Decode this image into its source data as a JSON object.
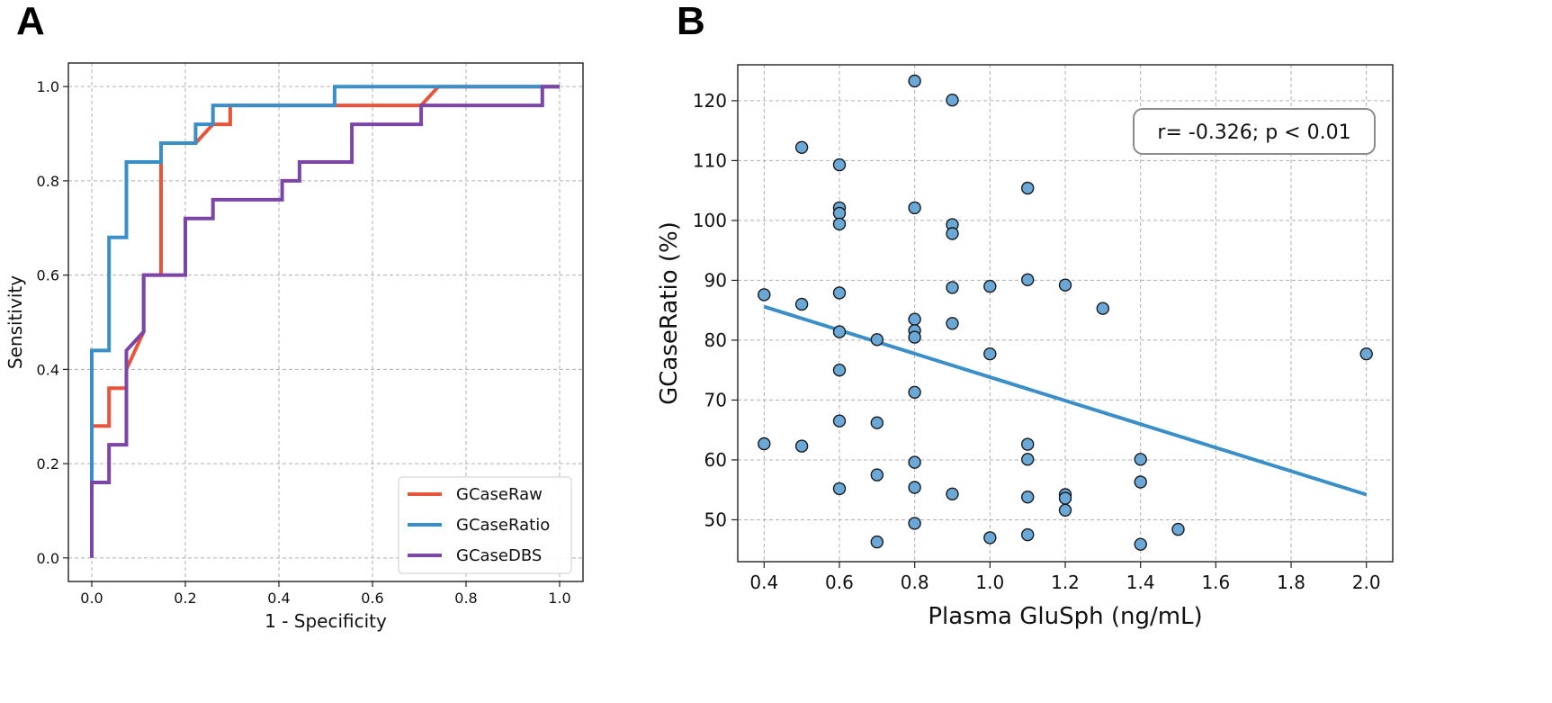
{
  "chart_data": [
    {
      "panel": "A",
      "type": "line",
      "title": "",
      "xlabel": "1 - Specificity",
      "ylabel": "Sensitivity",
      "xlim": [
        -0.05,
        1.05
      ],
      "ylim": [
        -0.05,
        1.05
      ],
      "xticks": [
        0.0,
        0.2,
        0.4,
        0.6,
        0.8,
        1.0
      ],
      "yticks": [
        0.0,
        0.2,
        0.4,
        0.6,
        0.8,
        1.0
      ],
      "xtick_labels": [
        "0.0",
        "0.2",
        "0.4",
        "0.6",
        "0.8",
        "1.0"
      ],
      "ytick_labels": [
        "0.0",
        "0.2",
        "0.4",
        "0.6",
        "0.8",
        "1.0"
      ],
      "grid": true,
      "legend_position": "bottom-right",
      "series": [
        {
          "name": "GCaseRaw",
          "color": "#e8553a",
          "x": [
            0.0,
            0.0,
            0.037,
            0.037,
            0.074,
            0.074,
            0.111,
            0.111,
            0.148,
            0.148,
            0.222,
            0.259,
            0.296,
            0.296,
            0.704,
            0.741,
            1.0
          ],
          "y": [
            0.0,
            0.28,
            0.28,
            0.36,
            0.36,
            0.4,
            0.48,
            0.6,
            0.6,
            0.88,
            0.88,
            0.92,
            0.92,
            0.96,
            0.96,
            1.0,
            1.0
          ]
        },
        {
          "name": "GCaseRatio",
          "color": "#3a8fc8",
          "x": [
            0.0,
            0.0,
            0.037,
            0.037,
            0.074,
            0.074,
            0.148,
            0.148,
            0.222,
            0.222,
            0.259,
            0.259,
            0.519,
            0.519,
            1.0
          ],
          "y": [
            0.0,
            0.44,
            0.44,
            0.68,
            0.68,
            0.84,
            0.84,
            0.88,
            0.88,
            0.92,
            0.92,
            0.96,
            0.96,
            1.0,
            1.0
          ]
        },
        {
          "name": "GCaseDBS",
          "color": "#7b46a8",
          "x": [
            0.0,
            0.0,
            0.037,
            0.037,
            0.074,
            0.074,
            0.111,
            0.111,
            0.2,
            0.2,
            0.259,
            0.259,
            0.407,
            0.407,
            0.444,
            0.444,
            0.556,
            0.556,
            0.704,
            0.704,
            0.963,
            0.963,
            1.0
          ],
          "y": [
            0.0,
            0.16,
            0.16,
            0.24,
            0.24,
            0.44,
            0.48,
            0.6,
            0.6,
            0.72,
            0.72,
            0.76,
            0.76,
            0.8,
            0.8,
            0.84,
            0.84,
            0.92,
            0.92,
            0.96,
            0.96,
            1.0,
            1.0
          ]
        }
      ]
    },
    {
      "panel": "B",
      "type": "scatter",
      "title": "",
      "xlabel": "Plasma GluSph (ng/mL)",
      "ylabel": "GCaseRatio (%)",
      "xlim": [
        0.33,
        2.07
      ],
      "ylim": [
        43,
        126
      ],
      "xticks": [
        0.4,
        0.6,
        0.8,
        1.0,
        1.2,
        1.4,
        1.6,
        1.8,
        2.0
      ],
      "yticks": [
        50,
        60,
        70,
        80,
        90,
        100,
        110,
        120
      ],
      "xtick_labels": [
        "0.4",
        "0.6",
        "0.8",
        "1.0",
        "1.2",
        "1.4",
        "1.6",
        "1.8",
        "2.0"
      ],
      "ytick_labels": [
        "50",
        "60",
        "70",
        "80",
        "90",
        "100",
        "110",
        "120"
      ],
      "grid": true,
      "point_color": "#6aa8d8",
      "points": [
        [
          0.4,
          87.6
        ],
        [
          0.4,
          62.7
        ],
        [
          0.5,
          112.2
        ],
        [
          0.5,
          86.0
        ],
        [
          0.5,
          62.3
        ],
        [
          0.6,
          109.3
        ],
        [
          0.6,
          102.1
        ],
        [
          0.6,
          101.2
        ],
        [
          0.6,
          99.4
        ],
        [
          0.6,
          87.9
        ],
        [
          0.6,
          81.4
        ],
        [
          0.6,
          75.0
        ],
        [
          0.6,
          66.5
        ],
        [
          0.6,
          55.2
        ],
        [
          0.7,
          80.1
        ],
        [
          0.7,
          66.2
        ],
        [
          0.7,
          57.5
        ],
        [
          0.7,
          46.3
        ],
        [
          0.8,
          123.3
        ],
        [
          0.8,
          102.1
        ],
        [
          0.8,
          83.5
        ],
        [
          0.8,
          81.6
        ],
        [
          0.8,
          80.5
        ],
        [
          0.8,
          71.3
        ],
        [
          0.8,
          59.6
        ],
        [
          0.8,
          55.4
        ],
        [
          0.8,
          49.4
        ],
        [
          0.9,
          120.1
        ],
        [
          0.9,
          99.3
        ],
        [
          0.9,
          97.8
        ],
        [
          0.9,
          88.8
        ],
        [
          0.9,
          82.8
        ],
        [
          0.9,
          54.3
        ],
        [
          1.0,
          89.0
        ],
        [
          1.0,
          77.7
        ],
        [
          1.0,
          47.0
        ],
        [
          1.1,
          105.4
        ],
        [
          1.1,
          90.1
        ],
        [
          1.1,
          62.6
        ],
        [
          1.1,
          60.1
        ],
        [
          1.1,
          53.8
        ],
        [
          1.1,
          47.5
        ],
        [
          1.2,
          89.2
        ],
        [
          1.2,
          54.2
        ],
        [
          1.2,
          53.6
        ],
        [
          1.2,
          51.6
        ],
        [
          1.3,
          85.3
        ],
        [
          1.4,
          60.1
        ],
        [
          1.4,
          56.3
        ],
        [
          1.4,
          45.9
        ],
        [
          1.5,
          48.4
        ],
        [
          2.0,
          77.7
        ]
      ],
      "regression": {
        "color": "#3a8fc8",
        "x": [
          0.4,
          2.0
        ],
        "y": [
          85.6,
          54.2
        ]
      },
      "annotation": "r= -0.326; p < 0.01"
    }
  ],
  "panel_labels": {
    "a": "A",
    "b": "B"
  }
}
